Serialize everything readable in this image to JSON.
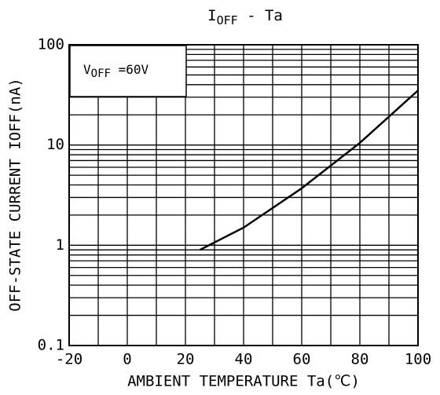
{
  "chart_data": {
    "type": "line",
    "title": {
      "main": "I",
      "sub": "OFF",
      "rest": " - Ta"
    },
    "xlabel": "AMBIENT TEMPERATURE Ta(℃)",
    "ylabel": "OFF-STATE CURRENT IOFF(nA)",
    "annotation": {
      "main": "V",
      "sub": "OFF",
      "rest": " =60V"
    },
    "x": [
      25,
      40,
      60,
      80,
      100
    ],
    "series": [
      {
        "name": "IOFF",
        "color": "#000000",
        "values": [
          0.9,
          1.5,
          3.7,
          10.5,
          35
        ]
      }
    ],
    "xlim": [
      -20,
      100
    ],
    "xticks": [
      -20,
      0,
      20,
      40,
      60,
      80,
      100
    ],
    "ylim": [
      0.1,
      100
    ],
    "yticks": [
      0.1,
      1,
      10,
      100
    ],
    "ylog": true,
    "grid": true
  }
}
